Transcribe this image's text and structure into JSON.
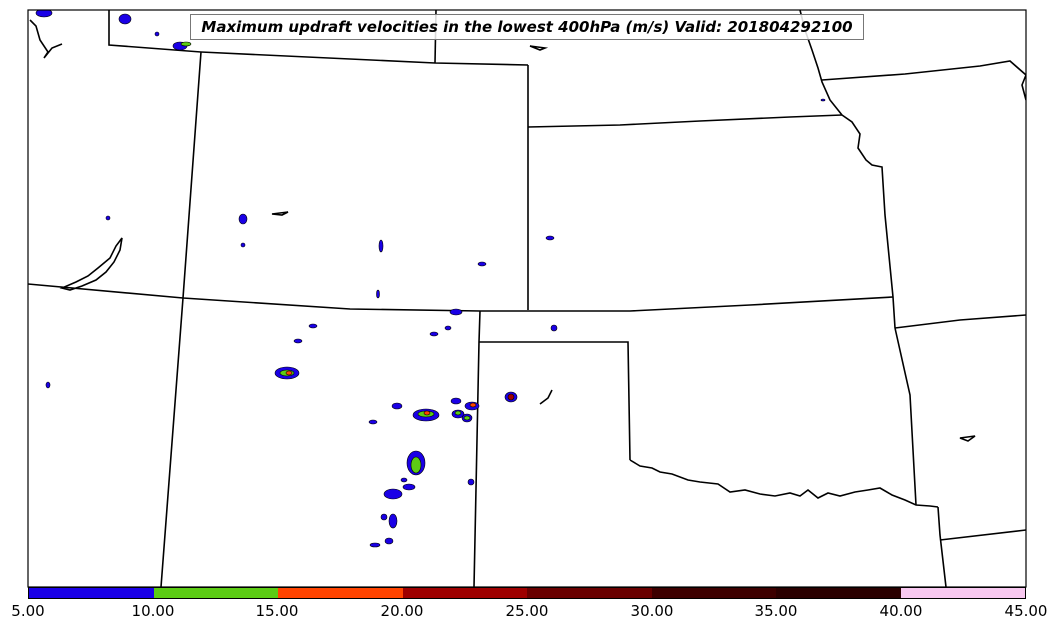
{
  "title": "Maximum updraft velocities in the lowest 400hPa (m/s) Valid: 201804292100",
  "colorbar": {
    "ticks": [
      "5.00",
      "10.00",
      "15.00",
      "20.00",
      "25.00",
      "30.00",
      "35.00",
      "40.00",
      "45.00"
    ],
    "colors": [
      "#1a00e6",
      "#5ccc14",
      "#ff4400",
      "#9e0000",
      "#690000",
      "#3d0000",
      "#2a0000",
      "#f8c8f0",
      "#fff0fa"
    ]
  },
  "map": {
    "background": "#ffffff",
    "border_color": "#000000"
  }
}
